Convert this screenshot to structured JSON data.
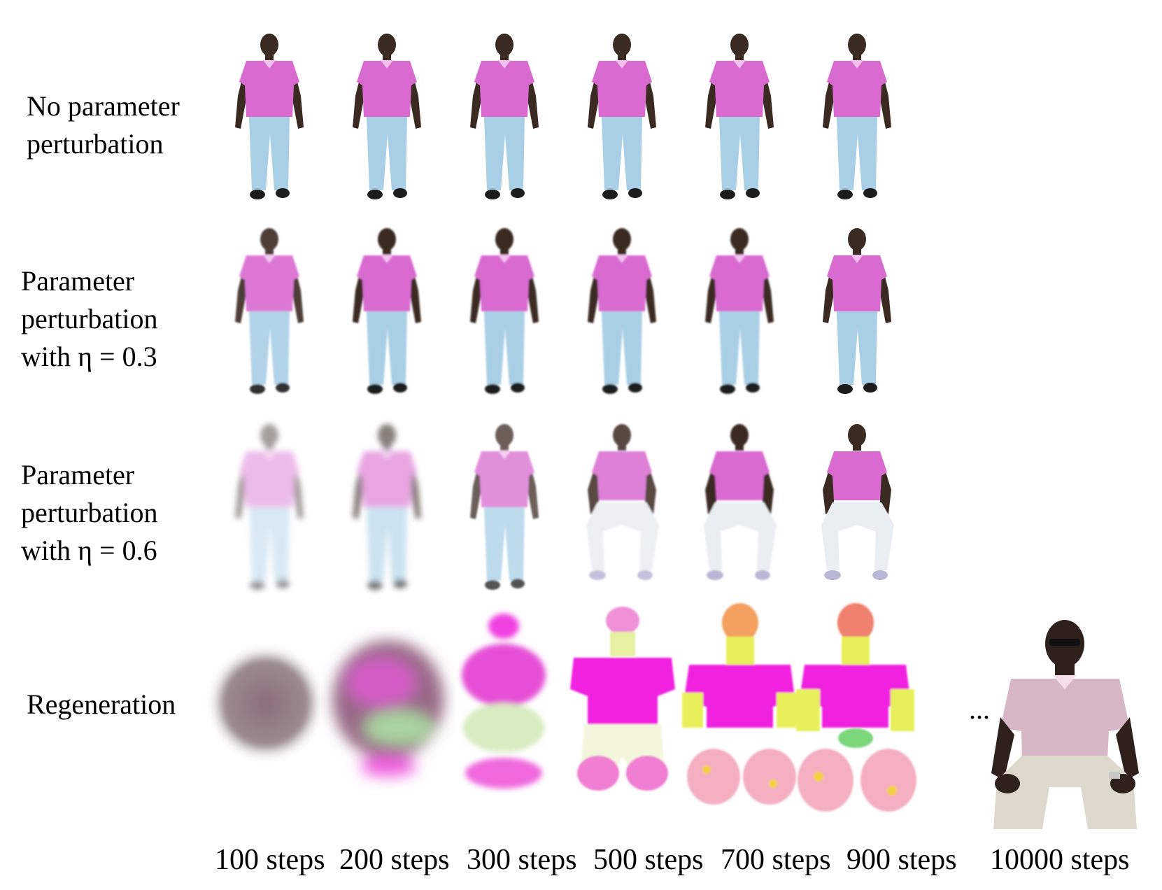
{
  "rows": [
    {
      "lines": [
        "No parameter",
        "perturbation"
      ]
    },
    {
      "lines": [
        "Parameter",
        "perturbation",
        "with η = 0.3"
      ]
    },
    {
      "lines": [
        "Parameter",
        "perturbation",
        "with η = 0.6"
      ]
    },
    {
      "lines": [
        "Regeneration"
      ]
    }
  ],
  "columns": [
    "100 steps",
    "200 steps",
    "300 steps",
    "500 steps",
    "700 steps",
    "900 steps",
    "10000 steps"
  ],
  "ellipsis": "...",
  "colors": {
    "shirt": "#d96ad0",
    "shirt_saturated": "#f020e0",
    "jeans": "#a9cfe6",
    "skin": "#3a2a22",
    "noise_yellow": "#e7f05a",
    "noise_green": "#7cd67a",
    "blob_gray": "#8a7a7e"
  }
}
